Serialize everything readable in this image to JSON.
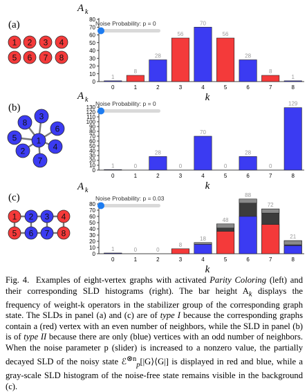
{
  "panels": [
    {
      "label": "(a)",
      "graph": {
        "type": "grid-circles",
        "vertices": [
          {
            "id": "1",
            "color": "red"
          },
          {
            "id": "2",
            "color": "red"
          },
          {
            "id": "3",
            "color": "red"
          },
          {
            "id": "4",
            "color": "red"
          },
          {
            "id": "5",
            "color": "red"
          },
          {
            "id": "6",
            "color": "red"
          },
          {
            "id": "7",
            "color": "red"
          },
          {
            "id": "8",
            "color": "red"
          }
        ],
        "edges": []
      },
      "slider_label": "Noise Probability: p = 0",
      "slider_value": 0
    },
    {
      "label": "(b)",
      "graph": {
        "type": "star",
        "vertices": [
          {
            "id": "1",
            "color": "blue"
          },
          {
            "id": "2",
            "color": "blue"
          },
          {
            "id": "3",
            "color": "blue"
          },
          {
            "id": "4",
            "color": "blue"
          },
          {
            "id": "5",
            "color": "blue"
          },
          {
            "id": "6",
            "color": "blue"
          },
          {
            "id": "7",
            "color": "blue"
          },
          {
            "id": "8",
            "color": "blue"
          }
        ],
        "edges": [
          [
            "1",
            "2"
          ],
          [
            "1",
            "3"
          ],
          [
            "1",
            "4"
          ],
          [
            "1",
            "5"
          ],
          [
            "1",
            "6"
          ],
          [
            "1",
            "7"
          ],
          [
            "1",
            "8"
          ]
        ]
      },
      "slider_label": "Noise Probability: p = 0",
      "slider_value": 0
    },
    {
      "label": "(c)",
      "graph": {
        "type": "ladder",
        "vertices": [
          {
            "id": "1",
            "color": "red"
          },
          {
            "id": "2",
            "color": "blue"
          },
          {
            "id": "3",
            "color": "blue"
          },
          {
            "id": "4",
            "color": "red"
          },
          {
            "id": "5",
            "color": "red"
          },
          {
            "id": "6",
            "color": "blue"
          },
          {
            "id": "7",
            "color": "blue"
          },
          {
            "id": "8",
            "color": "red"
          }
        ],
        "edges": [
          [
            "1",
            "2"
          ],
          [
            "2",
            "3"
          ],
          [
            "3",
            "4"
          ],
          [
            "5",
            "6"
          ],
          [
            "6",
            "7"
          ],
          [
            "7",
            "8"
          ],
          [
            "1",
            "5"
          ],
          [
            "2",
            "6"
          ],
          [
            "3",
            "7"
          ],
          [
            "4",
            "8"
          ]
        ]
      },
      "slider_label": "Noise Probability: p = 0.03",
      "slider_value": 0.03
    }
  ],
  "chart_data": [
    {
      "type": "bar",
      "title": "",
      "ylabel": "A_k",
      "xlabel": "k",
      "categories": [
        "0",
        "1",
        "2",
        "3",
        "4",
        "5",
        "6",
        "7",
        "8"
      ],
      "values": [
        1,
        8,
        28,
        56,
        70,
        56,
        28,
        8,
        1
      ],
      "bar_colors": [
        "blue",
        "red",
        "blue",
        "red",
        "blue",
        "red",
        "blue",
        "red",
        "blue"
      ],
      "data_labels": [
        "1",
        "8",
        "28",
        "56",
        "70",
        "56",
        "28",
        "8",
        "1"
      ],
      "ylim": [
        0,
        80
      ],
      "yticks": [
        0,
        10,
        20,
        30,
        40,
        50,
        60,
        70,
        80
      ]
    },
    {
      "type": "bar",
      "title": "",
      "ylabel": "A_k",
      "xlabel": "k",
      "categories": [
        "0",
        "1",
        "2",
        "3",
        "4",
        "5",
        "6",
        "7",
        "8"
      ],
      "values": [
        1,
        0,
        28,
        0,
        70,
        0,
        28,
        0,
        129
      ],
      "bar_colors": [
        "blue",
        "blue",
        "blue",
        "blue",
        "blue",
        "blue",
        "blue",
        "blue",
        "blue"
      ],
      "data_labels": [
        "1",
        "0",
        "28",
        "0",
        "70",
        "0",
        "28",
        "0",
        "129"
      ],
      "ylim": [
        0,
        130
      ],
      "yticks": [
        0,
        10,
        20,
        30,
        40,
        50,
        60,
        70,
        80,
        90,
        100,
        110,
        120,
        130
      ]
    },
    {
      "type": "bar",
      "title": "",
      "ylabel": "A_k",
      "xlabel": "k",
      "categories": [
        "0",
        "1",
        "2",
        "3",
        "4",
        "5",
        "6",
        "7",
        "8"
      ],
      "series": [
        {
          "name": "",
          "values": [
            1,
            0,
            0,
            8,
            18,
            48,
            88,
            72,
            21
          ]
        },
        {
          "name": "",
          "values": [
            1,
            0,
            0,
            8,
            15,
            36,
            60,
            47,
            13
          ]
        }
      ],
      "background_color": "gray",
      "foreground_colors": [
        "blue",
        "red",
        "blue",
        "red",
        "blue",
        "red",
        "blue",
        "red",
        "blue"
      ],
      "data_labels": [
        "1",
        "0",
        "0",
        "8",
        "18",
        "48",
        "88",
        "72",
        "21"
      ],
      "ylim": [
        0,
        90
      ],
      "yticks": [
        0,
        10,
        20,
        30,
        40,
        50,
        60,
        70,
        80
      ]
    }
  ],
  "colors": {
    "red": "#f43a3a",
    "blue": "#3b3bf2",
    "gray_light": "#8a8a8a",
    "gray_dark": "#3c3c3c",
    "label_gray": "#9a9a9a",
    "slider_blue": "#1e7cf0"
  },
  "caption": {
    "fig_label": "Fig. 4.",
    "text_1": "Examples of eight-vertex graphs with activated ",
    "italic_1": "Parity Coloring",
    "text_2": " (left) and their corresponding SLD histograms (right). The bar height A",
    "sub_k": "k",
    "text_3": " displays the frequency of weight-k operators in the stabilizer group of the corresponding graph state. The SLDs in panel (a) and (c) are of ",
    "italic_2": "type I",
    "text_4": " because the corresponding graphs contain a (red) vertex with an even number of neighbors, while the SLD in panel (b) is of ",
    "italic_3": "type II",
    "text_5": " because there are only (blue) vertices with an odd number of neighbors. When the noise parameter p (slider) is increased to a nonzero value, the partially decayed SLD of the noisy state ℰ",
    "sup": "⊗n",
    "sub_p": "p",
    "text_6": "[|G⟩⟨G|] is displayed in red and blue, while a gray-scale SLD histogram of the noise-free state remains visible in the background (c)."
  }
}
